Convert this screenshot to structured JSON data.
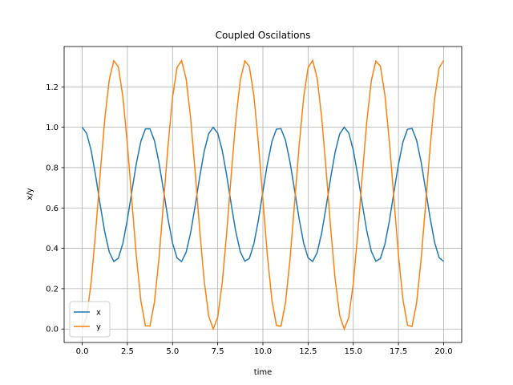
{
  "chart_data": {
    "type": "line",
    "title": "Coupled Oscilations",
    "x_label": "time",
    "y_label": "x/y",
    "x": [
      0,
      0.25,
      0.5,
      0.75,
      1,
      1.25,
      1.5,
      1.75,
      2,
      2.25,
      2.5,
      2.75,
      3,
      3.25,
      3.5,
      3.75,
      4,
      4.25,
      4.5,
      4.75,
      5,
      5.25,
      5.5,
      5.75,
      6,
      6.25,
      6.5,
      6.75,
      7,
      7.25,
      7.5,
      7.75,
      8,
      8.25,
      8.5,
      8.75,
      9,
      9.25,
      9.5,
      9.75,
      10,
      10.25,
      10.5,
      10.75,
      11,
      11.25,
      11.5,
      11.75,
      12,
      12.25,
      12.5,
      12.75,
      13,
      13.25,
      13.5,
      13.75,
      14,
      14.25,
      14.5,
      14.75,
      15,
      15.25,
      15.5,
      15.75,
      16,
      16.25,
      16.5,
      16.75,
      17,
      17.25,
      17.5,
      17.75,
      18,
      18.25,
      18.5,
      18.75,
      19,
      19.25,
      19.5,
      19.75,
      20
    ],
    "series": [
      {
        "name": "x",
        "color": "#1f77b4",
        "values": [
          1.0,
          0.969,
          0.883,
          0.756,
          0.613,
          0.48,
          0.381,
          0.335,
          0.351,
          0.424,
          0.543,
          0.684,
          0.822,
          0.931,
          0.992,
          0.992,
          0.933,
          0.824,
          0.687,
          0.545,
          0.426,
          0.352,
          0.335,
          0.38,
          0.477,
          0.61,
          0.753,
          0.88,
          0.968,
          1.0,
          0.97,
          0.885,
          0.759,
          0.616,
          0.482,
          0.383,
          0.336,
          0.35,
          0.422,
          0.54,
          0.681,
          0.819,
          0.929,
          0.991,
          0.993,
          0.935,
          0.827,
          0.69,
          0.548,
          0.428,
          0.353,
          0.335,
          0.378,
          0.475,
          0.607,
          0.75,
          0.878,
          0.967,
          1.0,
          0.972,
          0.887,
          0.762,
          0.619,
          0.485,
          0.385,
          0.336,
          0.349,
          0.42,
          0.537,
          0.678,
          0.816,
          0.927,
          0.99,
          0.994,
          0.937,
          0.83,
          0.693,
          0.551,
          0.43,
          0.354,
          0.335
        ]
      },
      {
        "name": "y",
        "color": "#ff7f0e",
        "values": [
          0.0,
          0.062,
          0.235,
          0.488,
          0.774,
          1.041,
          1.237,
          1.33,
          1.299,
          1.152,
          0.915,
          0.633,
          0.357,
          0.138,
          0.016,
          0.015,
          0.134,
          0.351,
          0.627,
          0.909,
          1.148,
          1.297,
          1.33,
          1.241,
          1.046,
          0.78,
          0.494,
          0.239,
          0.064,
          0.0,
          0.059,
          0.23,
          0.482,
          0.768,
          1.036,
          1.234,
          1.329,
          1.301,
          1.156,
          0.921,
          0.639,
          0.362,
          0.141,
          0.018,
          0.014,
          0.13,
          0.346,
          0.621,
          0.904,
          1.144,
          1.295,
          1.331,
          1.244,
          1.051,
          0.786,
          0.5,
          0.244,
          0.067,
          0.0,
          0.057,
          0.226,
          0.476,
          0.762,
          1.03,
          1.231,
          1.328,
          1.303,
          1.16,
          0.926,
          0.645,
          0.367,
          0.145,
          0.019,
          0.013,
          0.127,
          0.341,
          0.615,
          0.898,
          1.14,
          1.293,
          1.331
        ]
      }
    ],
    "xlim": [
      -1,
      21
    ],
    "ylim": [
      -0.0667,
      1.4
    ],
    "xticks": [
      {
        "value": 0,
        "label": "0.0"
      },
      2.5,
      {
        "value": 5,
        "label": "5.0"
      },
      7.5,
      {
        "value": 10,
        "label": "10.0"
      },
      12.5,
      {
        "value": 15,
        "label": "15.0"
      },
      17.5,
      {
        "value": 20,
        "label": "20.0"
      }
    ],
    "yticks": [
      {
        "value": 0,
        "label": "0.0"
      },
      0.2,
      0.4,
      0.6,
      0.8,
      {
        "value": 1,
        "label": "1.0"
      },
      1.2
    ],
    "grid": true,
    "legend": "lower-left"
  }
}
